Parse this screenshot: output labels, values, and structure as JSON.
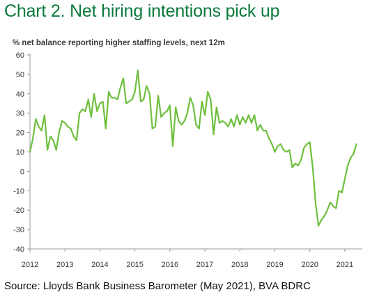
{
  "chart_data": {
    "type": "line",
    "title": "Chart 2. Net hiring intentions pick up",
    "ylabel": "% net balance reporting higher staffing levels, next 12m",
    "xlabel": "",
    "source": "Source: Lloyds Bank Business Barometer (May 2021), BVA BDRC",
    "ylim": [
      -40,
      60
    ],
    "yticks": [
      -40,
      -30,
      -20,
      -10,
      0,
      10,
      20,
      30,
      40,
      50,
      60
    ],
    "xlim": [
      2012.0,
      2021.5
    ],
    "xticks": [
      2012,
      2013,
      2014,
      2015,
      2016,
      2017,
      2018,
      2019,
      2020,
      2021
    ],
    "grid": false,
    "legend": "none",
    "colors": {
      "line": "#6fbf3f",
      "title": "#0a7a3b",
      "axis": "#999999"
    },
    "series": [
      {
        "x": [
          2012.0,
          2012.083,
          2012.167,
          2012.25,
          2012.333,
          2012.417,
          2012.5,
          2012.583,
          2012.667,
          2012.75,
          2012.833,
          2012.917,
          2013.0,
          2013.083,
          2013.167,
          2013.25,
          2013.333,
          2013.417,
          2013.5,
          2013.583,
          2013.667,
          2013.75,
          2013.833,
          2013.917,
          2014.0,
          2014.083,
          2014.167,
          2014.25,
          2014.333,
          2014.417,
          2014.5,
          2014.583,
          2014.667,
          2014.75,
          2014.833,
          2014.917,
          2015.0,
          2015.083,
          2015.167,
          2015.25,
          2015.333,
          2015.417,
          2015.5,
          2015.583,
          2015.667,
          2015.75,
          2015.833,
          2015.917,
          2016.0,
          2016.083,
          2016.167,
          2016.25,
          2016.333,
          2016.417,
          2016.5,
          2016.583,
          2016.667,
          2016.75,
          2016.833,
          2016.917,
          2017.0,
          2017.083,
          2017.167,
          2017.25,
          2017.333,
          2017.417,
          2017.5,
          2017.583,
          2017.667,
          2017.75,
          2017.833,
          2017.917,
          2018.0,
          2018.083,
          2018.167,
          2018.25,
          2018.333,
          2018.417,
          2018.5,
          2018.583,
          2018.667,
          2018.75,
          2018.833,
          2018.917,
          2019.0,
          2019.083,
          2019.167,
          2019.25,
          2019.333,
          2019.417,
          2019.5,
          2019.583,
          2019.667,
          2019.75,
          2019.833,
          2019.917,
          2020.0,
          2020.083,
          2020.167,
          2020.25,
          2020.333,
          2020.417,
          2020.5,
          2020.583,
          2020.667,
          2020.75,
          2020.833,
          2020.917,
          2021.0,
          2021.083,
          2021.167,
          2021.25,
          2021.333
        ],
        "values": [
          10,
          17,
          27,
          23,
          21,
          29,
          11,
          18,
          16,
          11,
          20,
          26,
          25,
          23,
          22,
          18,
          16,
          30,
          32,
          31,
          37,
          28,
          40,
          31,
          35,
          36,
          22,
          41,
          38,
          38,
          37,
          43,
          48,
          35,
          36,
          37,
          41,
          52,
          36,
          37,
          44,
          40,
          22,
          23,
          39,
          28,
          30,
          31,
          34,
          13,
          33,
          26,
          24,
          26,
          30,
          38,
          34,
          24,
          22,
          36,
          29,
          41,
          37,
          19,
          33,
          25,
          26,
          25,
          23,
          27,
          23,
          29,
          24,
          28,
          25,
          29,
          25,
          29,
          21,
          24,
          21,
          21,
          17,
          14,
          10,
          13,
          14,
          11,
          10,
          11,
          2,
          4,
          3,
          6,
          12,
          14,
          15,
          2,
          -17,
          -28,
          -25,
          -23,
          -20,
          -16,
          -18,
          -19,
          -10,
          -11,
          -4,
          3,
          7,
          9,
          14
        ]
      }
    ]
  }
}
